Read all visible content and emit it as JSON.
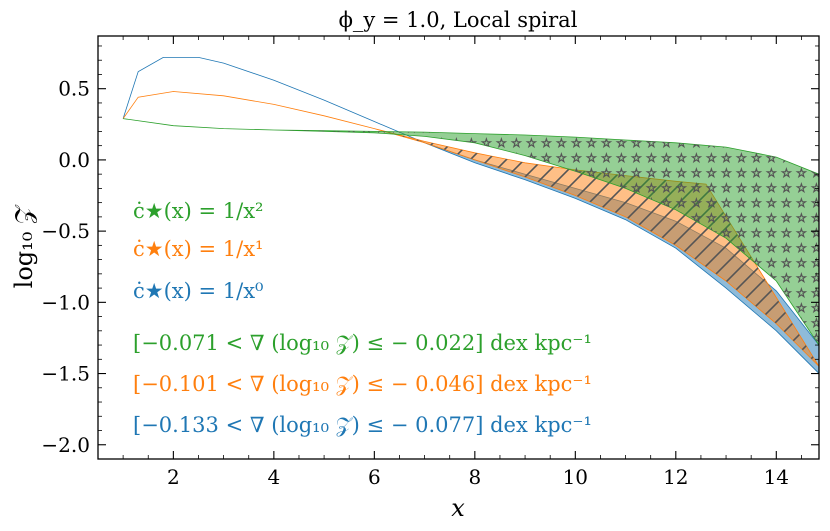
{
  "chart_data": {
    "type": "area",
    "title": "ϕ_y = 1.0, Local spiral",
    "xlabel": "x",
    "ylabel": "log₁₀ 𝒵",
    "xlim": [
      0.5,
      14.85
    ],
    "ylim": [
      -2.1,
      0.87
    ],
    "x_ticks": [
      2,
      4,
      6,
      8,
      10,
      12,
      14
    ],
    "y_ticks": [
      0.5,
      0.0,
      -0.5,
      -1.0,
      -1.5,
      -2.0
    ],
    "x_tick_labels": [
      "2",
      "4",
      "6",
      "8",
      "10",
      "12",
      "14"
    ],
    "y_tick_labels": [
      "0.5",
      "0.0",
      "−0.5",
      "−1.0",
      "−1.5",
      "−2.0"
    ],
    "grid": false,
    "colors": {
      "green": "#2ca02c",
      "orange": "#ff7f0e",
      "blue": "#1f77b4"
    },
    "series": [
      {
        "name": "ċ★(x) = 1/x²",
        "color": "#2ca02c",
        "hatch": "stars",
        "upper": {
          "x": [
            1.0,
            2,
            3,
            4,
            5,
            6,
            7,
            8,
            9,
            10,
            11,
            12,
            13,
            14,
            14.85
          ],
          "y": [
            0.29,
            0.24,
            0.22,
            0.21,
            0.205,
            0.2,
            0.195,
            0.185,
            0.175,
            0.16,
            0.14,
            0.12,
            0.09,
            0.02,
            -0.1
          ]
        },
        "lower": {
          "x": [
            1.0,
            2,
            3,
            4,
            5,
            6,
            7,
            8,
            9,
            10,
            11,
            12,
            13,
            14,
            14.85
          ],
          "y": [
            0.29,
            0.24,
            0.22,
            0.21,
            0.2,
            0.19,
            0.165,
            0.12,
            0.03,
            -0.08,
            -0.2,
            -0.35,
            -0.55,
            -0.85,
            -1.3
          ]
        }
      },
      {
        "name": "ċ★(x) = 1/x¹",
        "color": "#ff7f0e",
        "hatch": "slashes",
        "upper": {
          "x": [
            1.0,
            1.3,
            2,
            3,
            4,
            5,
            6,
            7,
            8,
            9,
            10,
            11,
            12,
            12.6
          ],
          "y": [
            0.29,
            0.44,
            0.48,
            0.45,
            0.39,
            0.31,
            0.22,
            0.13,
            0.05,
            -0.02,
            -0.07,
            -0.11,
            -0.15,
            -0.17
          ]
        },
        "lower": {
          "x": [
            1.0,
            1.3,
            2,
            3,
            4,
            5,
            6,
            7,
            8,
            9,
            10,
            11,
            12,
            13,
            14,
            14.85
          ],
          "y": [
            0.29,
            0.44,
            0.48,
            0.45,
            0.39,
            0.31,
            0.22,
            0.12,
            0.0,
            -0.12,
            -0.25,
            -0.4,
            -0.6,
            -0.85,
            -1.15,
            -1.45
          ]
        }
      },
      {
        "name": "ċ★(x) = 1/x⁰",
        "color": "#1f77b4",
        "hatch": "none",
        "upper": {
          "x": [
            1.0,
            1.3,
            1.8,
            2.5,
            3,
            4,
            5,
            6,
            7,
            8,
            9,
            10,
            11,
            12,
            13,
            14,
            14.85
          ],
          "y": [
            0.29,
            0.62,
            0.72,
            0.72,
            0.68,
            0.56,
            0.42,
            0.27,
            0.12,
            0.0,
            -0.1,
            -0.2,
            -0.3,
            -0.43,
            -0.62,
            -0.92,
            -1.3
          ]
        },
        "lower": {
          "x": [
            1.0,
            1.3,
            1.8,
            2.5,
            3,
            4,
            5,
            6,
            7,
            8,
            9,
            10,
            11,
            12,
            13,
            14,
            14.85
          ],
          "y": [
            0.29,
            0.62,
            0.72,
            0.72,
            0.68,
            0.56,
            0.42,
            0.27,
            0.12,
            -0.02,
            -0.14,
            -0.27,
            -0.42,
            -0.62,
            -0.9,
            -1.2,
            -1.5
          ]
        }
      }
    ],
    "annotations": [
      {
        "text": "ċ★(x) = 1/x²",
        "color": "#2ca02c"
      },
      {
        "text": "ċ★(x) = 1/x¹",
        "color": "#ff7f0e"
      },
      {
        "text": "ċ★(x) = 1/x⁰",
        "color": "#1f77b4"
      },
      {
        "text": "[−0.071 < ∇ (log₁₀ 𝒵) ≤ − 0.022] dex kpc⁻¹",
        "color": "#2ca02c"
      },
      {
        "text": "[−0.101 < ∇ (log₁₀ 𝒵) ≤ − 0.046] dex kpc⁻¹",
        "color": "#ff7f0e"
      },
      {
        "text": "[−0.133 < ∇ (log₁₀ 𝒵) ≤ − 0.077] dex kpc⁻¹",
        "color": "#1f77b4"
      }
    ]
  }
}
